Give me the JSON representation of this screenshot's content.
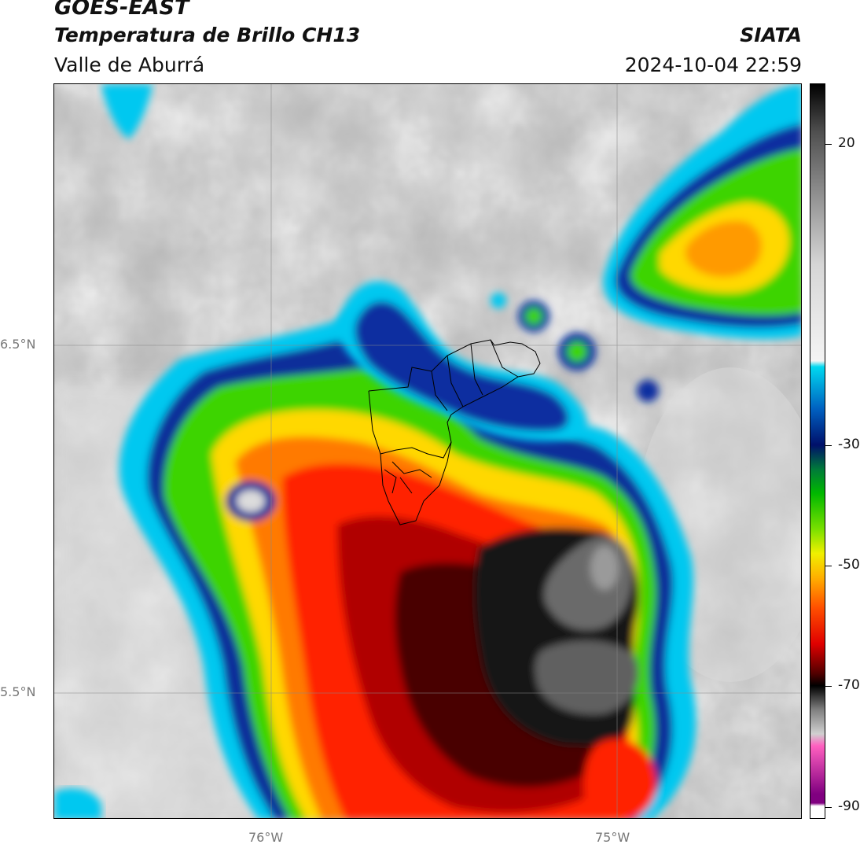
{
  "header": {
    "satellite": "GOES-EAST",
    "product": "Temperatura de Brillo CH13",
    "region": "Valle de Aburrá",
    "agency": "SIATA",
    "datetime": "2024-10-04 22:59"
  },
  "map": {
    "lat_labels": [
      "6.5°N",
      "5.5°N"
    ],
    "lon_labels": [
      "76°W",
      "75°W"
    ]
  },
  "colorbar": {
    "min": -92,
    "max": 30,
    "ticks": [
      "20",
      "-30",
      "-50",
      "-70",
      "-90"
    ],
    "tick_values": [
      20,
      -30,
      -50,
      -70,
      -90
    ]
  },
  "colors": {
    "cold_core": "#111111",
    "deep_red": "#b00000",
    "red": "#ff2a00",
    "orange": "#ff8c00",
    "yellow": "#ffe000",
    "green": "#4ae000",
    "dark_blue": "#00207a",
    "cyan": "#00c8f0",
    "clear_gray": "#c4c4c4"
  }
}
